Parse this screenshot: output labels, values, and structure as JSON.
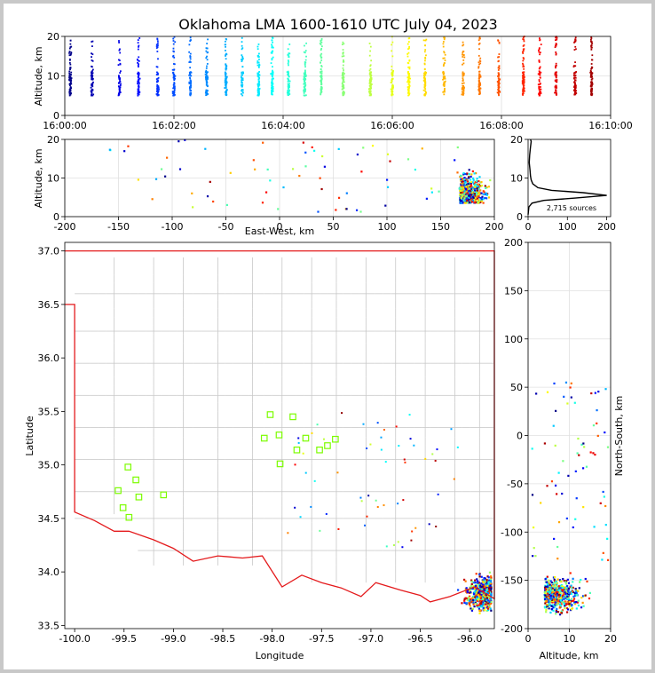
{
  "title": "Oklahoma LMA 1600-1610 UTC July 04, 2023",
  "colors": {
    "state_border": "#e41a1c",
    "county_border": "#c8c8c8",
    "station_marker": "#7cfc00",
    "histogram_line": "#000000"
  },
  "chart_data": [
    {
      "id": "time_altitude",
      "type": "scatter",
      "xlabel": "",
      "ylabel": "Altitude, km",
      "xticks": [
        "16:00:00",
        "16:02:00",
        "16:04:00",
        "16:06:00",
        "16:08:00",
        "16:10:00"
      ],
      "xlim_minutes": [
        0,
        10
      ],
      "ylim": [
        0,
        20
      ],
      "yticks": [
        0,
        10,
        20
      ],
      "grid": true,
      "color_by": "time",
      "colormap": "jet",
      "flash_minutes": [
        0.1,
        0.5,
        1.0,
        1.35,
        1.7,
        2.0,
        2.3,
        2.6,
        2.95,
        3.25,
        3.55,
        3.8,
        4.1,
        4.4,
        4.7,
        5.1,
        5.6,
        6.0,
        6.3,
        6.6,
        6.95,
        7.3,
        7.6,
        7.95,
        8.4,
        8.7,
        9.0,
        9.35,
        9.65
      ]
    },
    {
      "id": "ew_altitude",
      "type": "scatter",
      "xlabel": "East-West, km",
      "ylabel": "Altitude, km",
      "xlim": [
        -200,
        200
      ],
      "xticks": [
        -200,
        -150,
        -100,
        -50,
        0,
        50,
        100,
        150,
        200
      ],
      "ylim": [
        0,
        20
      ],
      "yticks": [
        0,
        10,
        20
      ],
      "grid": true
    },
    {
      "id": "altitude_histogram",
      "type": "line",
      "xlim": [
        0,
        210
      ],
      "xticks": [
        0,
        100,
        200
      ],
      "ylim": [
        0,
        20
      ],
      "yticks": [
        0,
        10,
        20
      ],
      "annotation": "2,715 sources",
      "profile": [
        [
          0,
          0.5
        ],
        [
          2,
          2.5
        ],
        [
          10,
          3.5
        ],
        [
          40,
          4.2
        ],
        [
          120,
          4.8
        ],
        [
          200,
          5.5
        ],
        [
          140,
          6.2
        ],
        [
          60,
          6.8
        ],
        [
          25,
          7.5
        ],
        [
          12,
          8.5
        ],
        [
          8,
          9.5
        ],
        [
          6,
          10.5
        ],
        [
          5,
          12
        ],
        [
          3,
          14
        ],
        [
          4,
          16
        ],
        [
          6,
          18
        ],
        [
          8,
          19.5
        ],
        [
          6,
          20
        ]
      ]
    },
    {
      "id": "plan_view",
      "type": "scatter",
      "xlabel": "Longitude",
      "ylabel": "Latitude",
      "xlim": [
        -100.1,
        -95.75
      ],
      "xticks": [
        -100.0,
        -99.5,
        -99.0,
        -98.5,
        -98.0,
        -97.5,
        -97.0,
        -96.5,
        -96.0
      ],
      "ylim": [
        33.47,
        37.08
      ],
      "yticks": [
        33.5,
        34.0,
        34.5,
        35.0,
        35.5,
        36.0,
        36.5,
        37.0
      ],
      "stations": [
        [
          -98.02,
          35.47
        ],
        [
          -97.79,
          35.45
        ],
        [
          -98.08,
          35.25
        ],
        [
          -97.93,
          35.28
        ],
        [
          -97.66,
          35.25
        ],
        [
          -97.36,
          35.24
        ],
        [
          -97.44,
          35.18
        ],
        [
          -97.75,
          35.14
        ],
        [
          -97.52,
          35.14
        ],
        [
          -97.92,
          35.01
        ],
        [
          -99.46,
          34.98
        ],
        [
          -99.38,
          34.86
        ],
        [
          -99.56,
          34.76
        ],
        [
          -99.35,
          34.7
        ],
        [
          -99.1,
          34.72
        ],
        [
          -99.51,
          34.6
        ],
        [
          -99.45,
          34.51
        ]
      ]
    },
    {
      "id": "ns_altitude",
      "type": "scatter",
      "xlabel": "Altitude, km",
      "ylabel": "North-South, km",
      "xlim": [
        0,
        20
      ],
      "xticks": [
        0,
        10,
        20
      ],
      "ylim": [
        -200,
        200
      ],
      "yticks": [
        -200,
        -150,
        -100,
        -50,
        0,
        50,
        100,
        150,
        200
      ],
      "grid": true
    }
  ]
}
